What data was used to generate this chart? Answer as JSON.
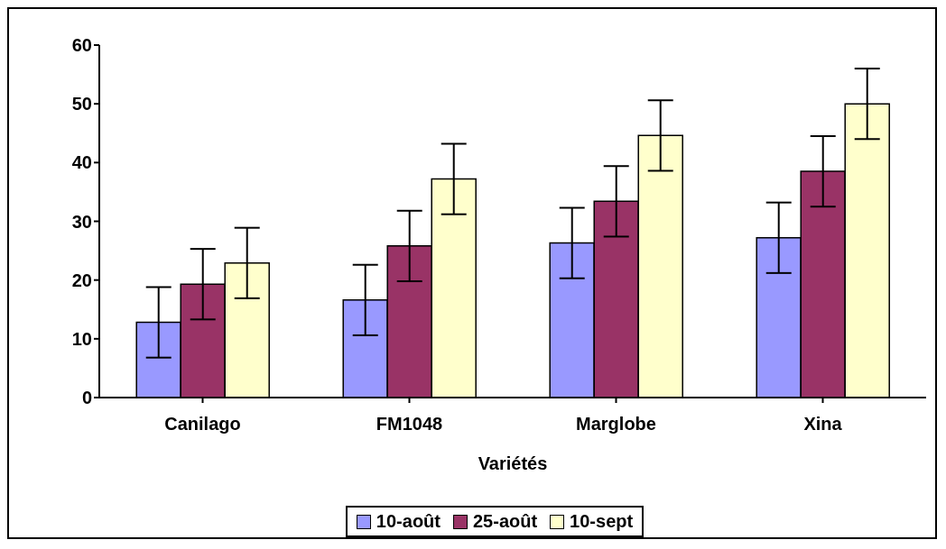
{
  "chart_data": {
    "type": "bar",
    "xlabel": "Variétés",
    "categories": [
      "Canilago",
      "FM1048",
      "Marglobe",
      "Xina"
    ],
    "series": [
      {
        "name": "10-août",
        "color": "#9999ff",
        "values": [
          12.8,
          16.6,
          26.3,
          27.2
        ],
        "errors": [
          6,
          6,
          6,
          6
        ]
      },
      {
        "name": "25-août",
        "color": "#993366",
        "values": [
          19.3,
          25.8,
          33.4,
          38.5
        ],
        "errors": [
          6,
          6,
          6,
          6
        ]
      },
      {
        "name": "10-sept",
        "color": "#ffffcc",
        "values": [
          22.9,
          37.2,
          44.6,
          50.0
        ],
        "errors": [
          6,
          6,
          6,
          6
        ]
      }
    ],
    "ylim": [
      0,
      60
    ],
    "yticks": [
      0,
      10,
      20,
      30,
      40,
      50,
      60
    ],
    "grid": false,
    "legend": "bottom"
  }
}
